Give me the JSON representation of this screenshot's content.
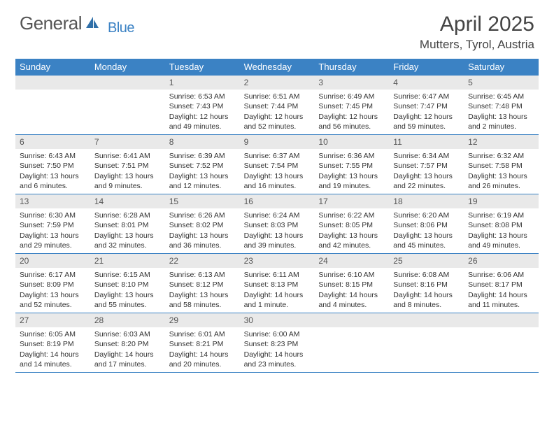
{
  "brand": {
    "name1": "General",
    "name2": "Blue"
  },
  "title": "April 2025",
  "location": "Mutters, Tyrol, Austria",
  "colors": {
    "accent": "#3b82c4",
    "daynum_bg": "#e9e9e9",
    "text": "#333333",
    "muted": "#555555",
    "bg": "#ffffff"
  },
  "dow": [
    "Sunday",
    "Monday",
    "Tuesday",
    "Wednesday",
    "Thursday",
    "Friday",
    "Saturday"
  ],
  "weeks": [
    [
      {
        "n": "",
        "sr": "",
        "ss": "",
        "dl": ""
      },
      {
        "n": "",
        "sr": "",
        "ss": "",
        "dl": ""
      },
      {
        "n": "1",
        "sr": "Sunrise: 6:53 AM",
        "ss": "Sunset: 7:43 PM",
        "dl": "Daylight: 12 hours and 49 minutes."
      },
      {
        "n": "2",
        "sr": "Sunrise: 6:51 AM",
        "ss": "Sunset: 7:44 PM",
        "dl": "Daylight: 12 hours and 52 minutes."
      },
      {
        "n": "3",
        "sr": "Sunrise: 6:49 AM",
        "ss": "Sunset: 7:45 PM",
        "dl": "Daylight: 12 hours and 56 minutes."
      },
      {
        "n": "4",
        "sr": "Sunrise: 6:47 AM",
        "ss": "Sunset: 7:47 PM",
        "dl": "Daylight: 12 hours and 59 minutes."
      },
      {
        "n": "5",
        "sr": "Sunrise: 6:45 AM",
        "ss": "Sunset: 7:48 PM",
        "dl": "Daylight: 13 hours and 2 minutes."
      }
    ],
    [
      {
        "n": "6",
        "sr": "Sunrise: 6:43 AM",
        "ss": "Sunset: 7:50 PM",
        "dl": "Daylight: 13 hours and 6 minutes."
      },
      {
        "n": "7",
        "sr": "Sunrise: 6:41 AM",
        "ss": "Sunset: 7:51 PM",
        "dl": "Daylight: 13 hours and 9 minutes."
      },
      {
        "n": "8",
        "sr": "Sunrise: 6:39 AM",
        "ss": "Sunset: 7:52 PM",
        "dl": "Daylight: 13 hours and 12 minutes."
      },
      {
        "n": "9",
        "sr": "Sunrise: 6:37 AM",
        "ss": "Sunset: 7:54 PM",
        "dl": "Daylight: 13 hours and 16 minutes."
      },
      {
        "n": "10",
        "sr": "Sunrise: 6:36 AM",
        "ss": "Sunset: 7:55 PM",
        "dl": "Daylight: 13 hours and 19 minutes."
      },
      {
        "n": "11",
        "sr": "Sunrise: 6:34 AM",
        "ss": "Sunset: 7:57 PM",
        "dl": "Daylight: 13 hours and 22 minutes."
      },
      {
        "n": "12",
        "sr": "Sunrise: 6:32 AM",
        "ss": "Sunset: 7:58 PM",
        "dl": "Daylight: 13 hours and 26 minutes."
      }
    ],
    [
      {
        "n": "13",
        "sr": "Sunrise: 6:30 AM",
        "ss": "Sunset: 7:59 PM",
        "dl": "Daylight: 13 hours and 29 minutes."
      },
      {
        "n": "14",
        "sr": "Sunrise: 6:28 AM",
        "ss": "Sunset: 8:01 PM",
        "dl": "Daylight: 13 hours and 32 minutes."
      },
      {
        "n": "15",
        "sr": "Sunrise: 6:26 AM",
        "ss": "Sunset: 8:02 PM",
        "dl": "Daylight: 13 hours and 36 minutes."
      },
      {
        "n": "16",
        "sr": "Sunrise: 6:24 AM",
        "ss": "Sunset: 8:03 PM",
        "dl": "Daylight: 13 hours and 39 minutes."
      },
      {
        "n": "17",
        "sr": "Sunrise: 6:22 AM",
        "ss": "Sunset: 8:05 PM",
        "dl": "Daylight: 13 hours and 42 minutes."
      },
      {
        "n": "18",
        "sr": "Sunrise: 6:20 AM",
        "ss": "Sunset: 8:06 PM",
        "dl": "Daylight: 13 hours and 45 minutes."
      },
      {
        "n": "19",
        "sr": "Sunrise: 6:19 AM",
        "ss": "Sunset: 8:08 PM",
        "dl": "Daylight: 13 hours and 49 minutes."
      }
    ],
    [
      {
        "n": "20",
        "sr": "Sunrise: 6:17 AM",
        "ss": "Sunset: 8:09 PM",
        "dl": "Daylight: 13 hours and 52 minutes."
      },
      {
        "n": "21",
        "sr": "Sunrise: 6:15 AM",
        "ss": "Sunset: 8:10 PM",
        "dl": "Daylight: 13 hours and 55 minutes."
      },
      {
        "n": "22",
        "sr": "Sunrise: 6:13 AM",
        "ss": "Sunset: 8:12 PM",
        "dl": "Daylight: 13 hours and 58 minutes."
      },
      {
        "n": "23",
        "sr": "Sunrise: 6:11 AM",
        "ss": "Sunset: 8:13 PM",
        "dl": "Daylight: 14 hours and 1 minute."
      },
      {
        "n": "24",
        "sr": "Sunrise: 6:10 AM",
        "ss": "Sunset: 8:15 PM",
        "dl": "Daylight: 14 hours and 4 minutes."
      },
      {
        "n": "25",
        "sr": "Sunrise: 6:08 AM",
        "ss": "Sunset: 8:16 PM",
        "dl": "Daylight: 14 hours and 8 minutes."
      },
      {
        "n": "26",
        "sr": "Sunrise: 6:06 AM",
        "ss": "Sunset: 8:17 PM",
        "dl": "Daylight: 14 hours and 11 minutes."
      }
    ],
    [
      {
        "n": "27",
        "sr": "Sunrise: 6:05 AM",
        "ss": "Sunset: 8:19 PM",
        "dl": "Daylight: 14 hours and 14 minutes."
      },
      {
        "n": "28",
        "sr": "Sunrise: 6:03 AM",
        "ss": "Sunset: 8:20 PM",
        "dl": "Daylight: 14 hours and 17 minutes."
      },
      {
        "n": "29",
        "sr": "Sunrise: 6:01 AM",
        "ss": "Sunset: 8:21 PM",
        "dl": "Daylight: 14 hours and 20 minutes."
      },
      {
        "n": "30",
        "sr": "Sunrise: 6:00 AM",
        "ss": "Sunset: 8:23 PM",
        "dl": "Daylight: 14 hours and 23 minutes."
      },
      {
        "n": "",
        "sr": "",
        "ss": "",
        "dl": ""
      },
      {
        "n": "",
        "sr": "",
        "ss": "",
        "dl": ""
      },
      {
        "n": "",
        "sr": "",
        "ss": "",
        "dl": ""
      }
    ]
  ]
}
